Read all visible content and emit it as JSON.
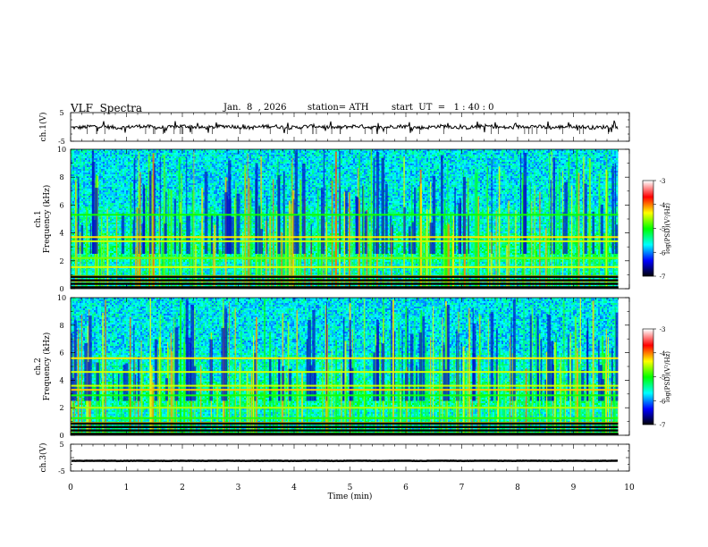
{
  "header": {
    "title": "VLF  Spectra",
    "date": "Jan.  8  , 2026",
    "station": "station= ATH",
    "start": "start  UT  =   1 : 40 : 0"
  },
  "chart_data": [
    {
      "type": "line",
      "panel": "ch1-waveform",
      "ylabel": "ch.1(V)",
      "ylim": [
        -5,
        5
      ],
      "yticks": [
        "5",
        "-5"
      ],
      "xlim": [
        0,
        10
      ],
      "series": [
        {
          "values_description_only": false,
          "x_end": 9.8,
          "baseline": 0,
          "amplitude": 1
        }
      ]
    },
    {
      "type": "heatmap",
      "panel": "ch1-spectrogram",
      "ylabel_channel": "ch.1",
      "ylabel": "Frequency  (kHz)",
      "ylim": [
        0,
        10
      ],
      "yticks": [
        "0",
        "2",
        "4",
        "6",
        "8",
        "10"
      ],
      "xlim": [
        0,
        10
      ],
      "x_end": 9.8,
      "strong_bands_khz": [
        0.1,
        0.55,
        0.9,
        1.55,
        2.2,
        3.4,
        3.7,
        5.3
      ],
      "colorbar": {
        "label": "log(PSD)(V²/Hz)",
        "ticks": [
          "-3",
          "-4",
          "-5",
          "-6",
          "-7"
        ],
        "range": [
          -7,
          -3
        ]
      }
    },
    {
      "type": "heatmap",
      "panel": "ch2-spectrogram",
      "ylabel_channel": "ch.2",
      "ylabel": "Frequency  (kHz)",
      "ylim": [
        0,
        10
      ],
      "yticks": [
        "0",
        "2",
        "4",
        "6",
        "8",
        "10"
      ],
      "xlim": [
        0,
        10
      ],
      "x_end": 9.8,
      "strong_bands_khz": [
        0.15,
        0.6,
        0.9,
        1.25,
        2.0,
        2.9,
        3.3,
        3.6,
        4.6,
        5.6
      ],
      "colorbar": {
        "label": "log(PSD)(V²/Hz)",
        "ticks": [
          "-3",
          "-4",
          "-5",
          "-6",
          "-7"
        ],
        "range": [
          -7,
          -3
        ]
      }
    },
    {
      "type": "line",
      "panel": "ch3-waveform",
      "ylabel": "ch.3(V)",
      "ylim": [
        -5,
        5
      ],
      "yticks": [
        "5",
        "-5"
      ],
      "xlim": [
        0,
        10
      ],
      "series": [
        {
          "x_end": 9.8,
          "baseline": -1.2,
          "amplitude": 0.1
        }
      ]
    }
  ],
  "xaxis": {
    "label": "Time  (min)",
    "ticks": [
      "0",
      "1",
      "2",
      "3",
      "4",
      "5",
      "6",
      "7",
      "8",
      "9",
      "10"
    ]
  },
  "colors": {
    "colormap": [
      "#000000",
      "#0000ff",
      "#00ffff",
      "#00ff00",
      "#ffff00",
      "#ff0000",
      "#ffffff"
    ]
  }
}
